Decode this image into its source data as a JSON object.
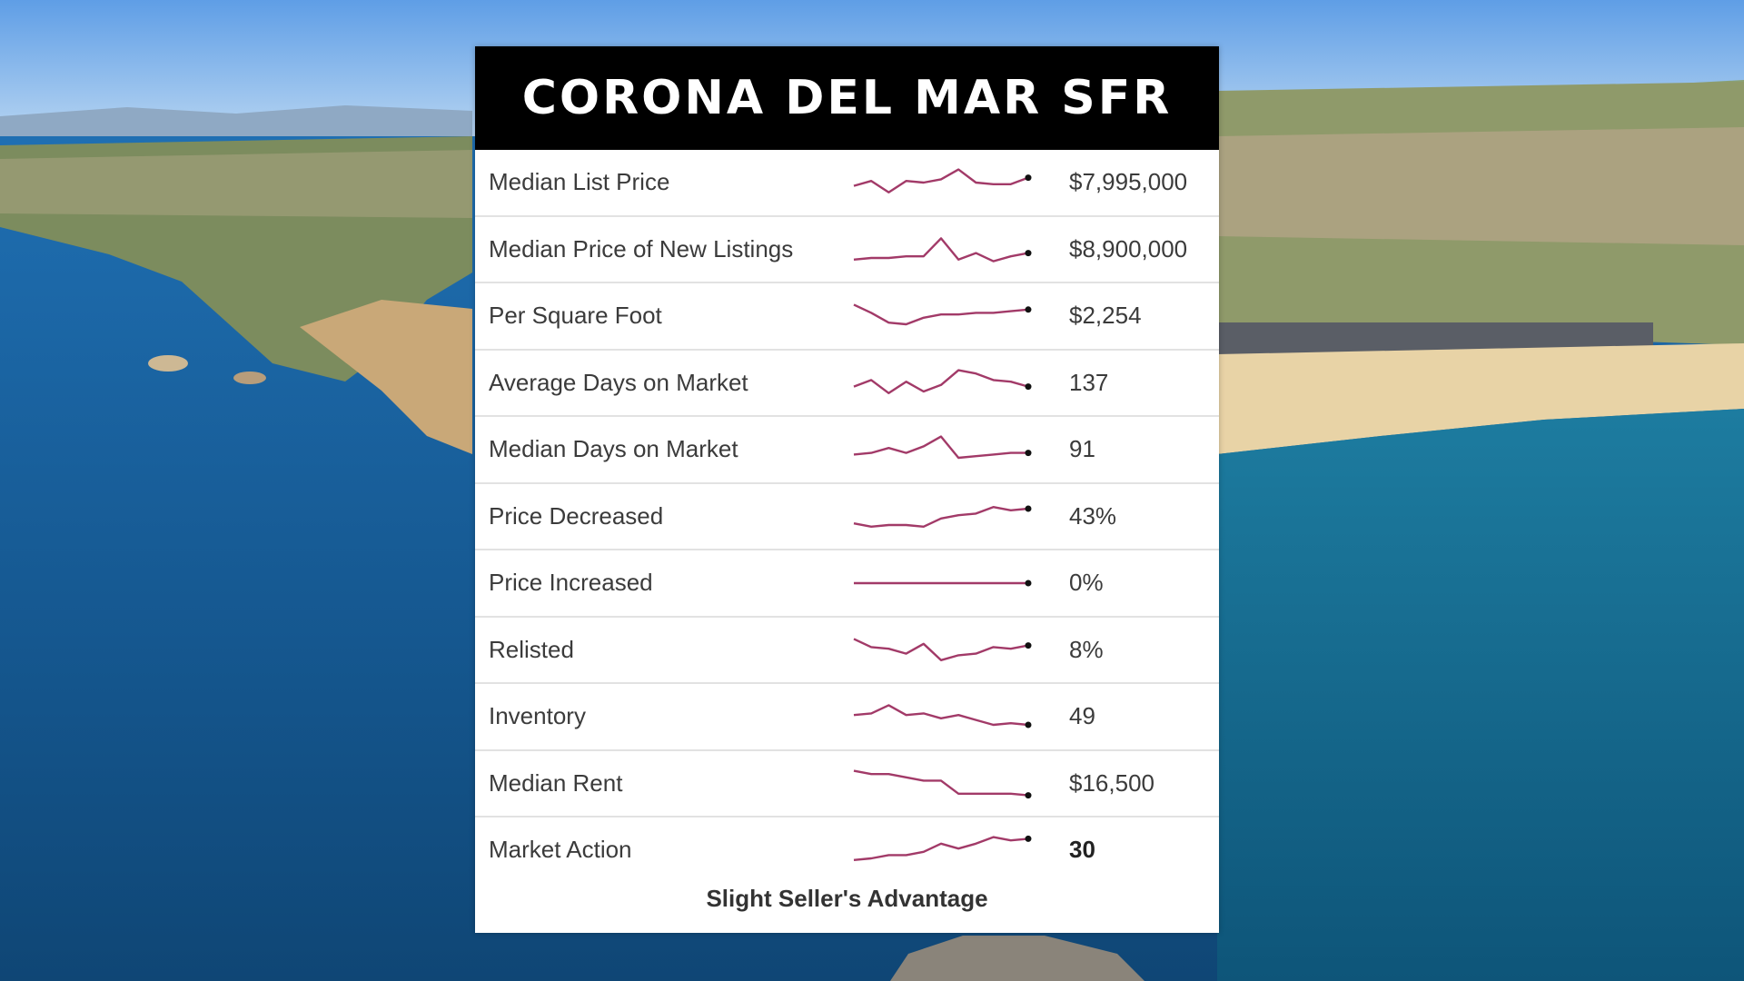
{
  "title": "CORONA DEL MAR SFR",
  "spark_color": "#a23a68",
  "rows": [
    {
      "label": "Median List Price",
      "value": "$7,995,000",
      "trend": [
        0.4,
        0.55,
        0.2,
        0.55,
        0.5,
        0.6,
        0.9,
        0.5,
        0.45,
        0.45,
        0.65
      ]
    },
    {
      "label": "Median Price of New Listings",
      "value": "$8,900,000",
      "trend": [
        0.2,
        0.25,
        0.25,
        0.3,
        0.3,
        0.85,
        0.2,
        0.4,
        0.15,
        0.3,
        0.4
      ]
    },
    {
      "label": "Per Square Foot",
      "value": "$2,254",
      "trend": [
        0.85,
        0.6,
        0.3,
        0.25,
        0.45,
        0.55,
        0.55,
        0.6,
        0.6,
        0.65,
        0.7
      ]
    },
    {
      "label": "Average Days on Market",
      "value": "137",
      "trend": [
        0.4,
        0.6,
        0.2,
        0.55,
        0.25,
        0.45,
        0.9,
        0.8,
        0.6,
        0.55,
        0.4
      ]
    },
    {
      "label": "Median Days on Market",
      "value": "91",
      "trend": [
        0.35,
        0.4,
        0.55,
        0.4,
        0.6,
        0.9,
        0.25,
        0.3,
        0.35,
        0.4,
        0.4
      ]
    },
    {
      "label": "Price Decreased",
      "value": "43%",
      "trend": [
        0.3,
        0.2,
        0.25,
        0.25,
        0.2,
        0.45,
        0.55,
        0.6,
        0.8,
        0.7,
        0.75
      ]
    },
    {
      "label": "Price Increased",
      "value": "0%",
      "trend": [
        0.5,
        0.5,
        0.5,
        0.5,
        0.5,
        0.5,
        0.5,
        0.5,
        0.5,
        0.5,
        0.5
      ]
    },
    {
      "label": "Relisted",
      "value": "8%",
      "trend": [
        0.85,
        0.6,
        0.55,
        0.4,
        0.7,
        0.2,
        0.35,
        0.4,
        0.6,
        0.55,
        0.65
      ]
    },
    {
      "label": "Inventory",
      "value": "49",
      "trend": [
        0.55,
        0.6,
        0.85,
        0.55,
        0.6,
        0.45,
        0.55,
        0.4,
        0.25,
        0.3,
        0.25
      ]
    },
    {
      "label": "Median Rent",
      "value": "$16,500",
      "trend": [
        0.9,
        0.8,
        0.8,
        0.7,
        0.6,
        0.6,
        0.2,
        0.2,
        0.2,
        0.2,
        0.15
      ]
    },
    {
      "label": "Market Action",
      "value": "30",
      "value_bold": true,
      "trend": [
        0.2,
        0.25,
        0.35,
        0.35,
        0.45,
        0.7,
        0.55,
        0.7,
        0.9,
        0.8,
        0.85
      ]
    }
  ],
  "footer_text": "Slight Seller's Advantage"
}
